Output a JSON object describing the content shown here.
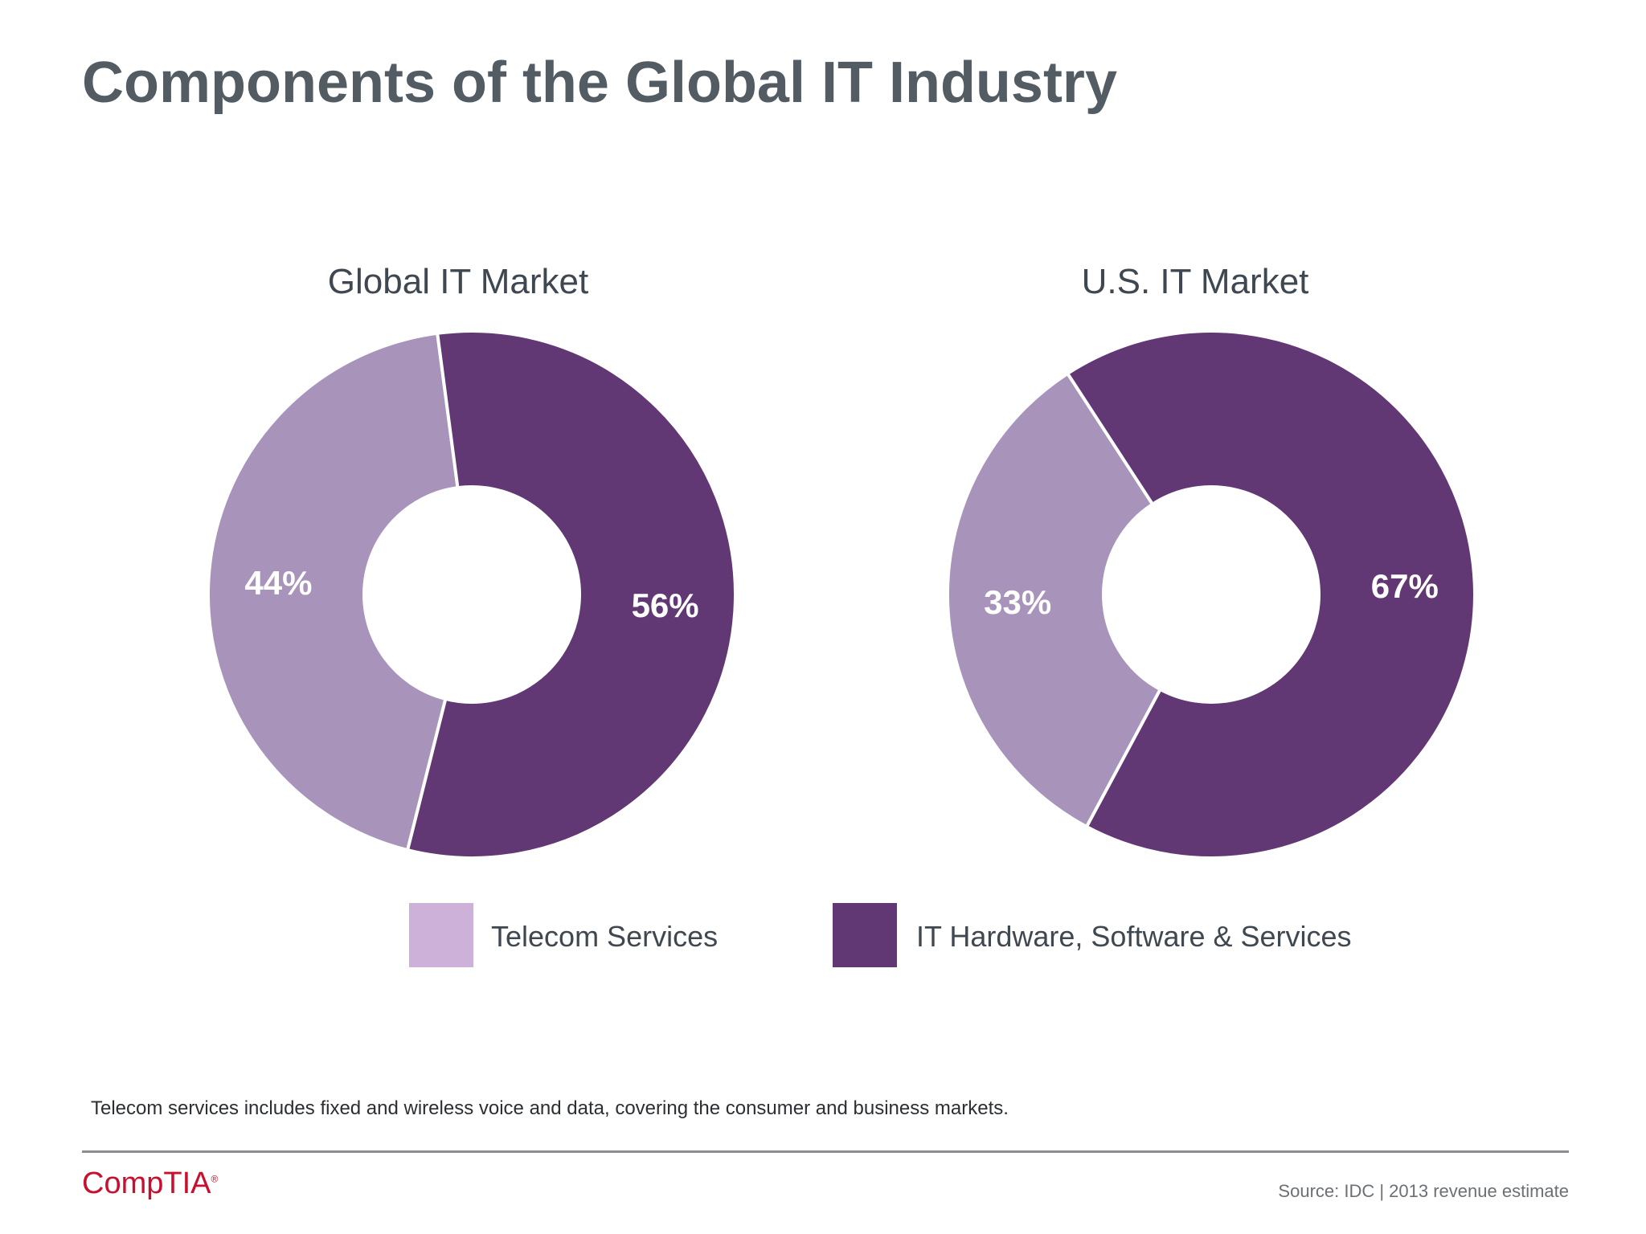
{
  "title": "Components of the Global IT Industry",
  "colors": {
    "telecom": "#a893bb",
    "it": "#623874",
    "legend_telecom": "#cdb1d9",
    "legend_it": "#623874"
  },
  "chart_data": [
    {
      "type": "pie",
      "title": "Global IT Market",
      "slices": [
        {
          "name": "Telecom Services",
          "value": 44,
          "label": "44%"
        },
        {
          "name": "IT Hardware, Software & Services",
          "value": 56,
          "label": "56%"
        }
      ]
    },
    {
      "type": "pie",
      "title": "U.S. IT Market",
      "slices": [
        {
          "name": "Telecom Services",
          "value": 33,
          "label": "33%"
        },
        {
          "name": "IT Hardware, Software & Services",
          "value": 67,
          "label": "67%"
        }
      ]
    }
  ],
  "legend": [
    {
      "label": "Telecom Services"
    },
    {
      "label": "IT Hardware, Software & Services"
    }
  ],
  "footnote": "Telecom services includes fixed and wireless voice and data, covering the consumer and business markets.",
  "logo_text": "CompTIA",
  "source": "Source: IDC | 2013 revenue estimate"
}
